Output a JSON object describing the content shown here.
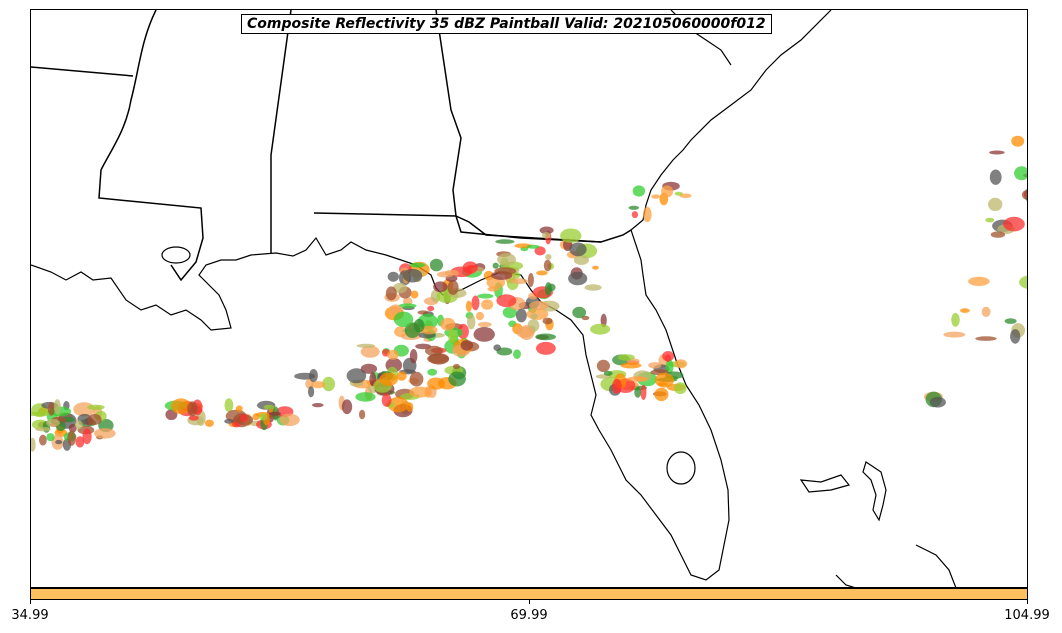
{
  "title": "Composite Reflectivity 35 dBZ Paintball Valid: 202105060000f012",
  "map": {
    "region": "Southeastern US / Gulf of Mexico",
    "basemap": "coastlines and state borders",
    "paintball_colors": [
      "#f4a460",
      "#ff8c00",
      "#8b3a3a",
      "#2e8b2e",
      "#32cd32",
      "#bdb76b",
      "#9acd32",
      "#ff3030",
      "#555555",
      "#ffa040",
      "#a0522d"
    ]
  },
  "colorbar": {
    "color": "#ffc060",
    "ticks": [
      "34.99",
      "69.99",
      "104.99"
    ]
  }
}
